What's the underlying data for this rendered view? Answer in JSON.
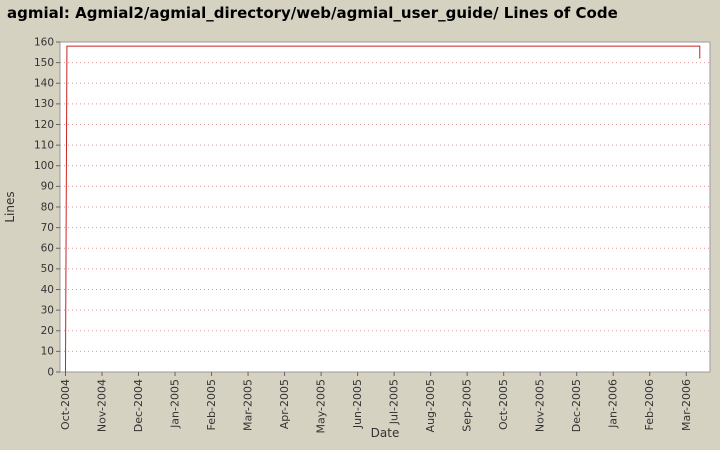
{
  "chart_data": {
    "type": "line",
    "title": "agmial: Agmial2/agmial_directory/web/agmial_user_guide/ Lines of Code",
    "xlabel": "Date",
    "ylabel": "Lines",
    "x_tick_labels": [
      "Oct-2004",
      "Nov-2004",
      "Dec-2004",
      "Jan-2005",
      "Feb-2005",
      "Mar-2005",
      "Apr-2005",
      "May-2005",
      "Jun-2005",
      "Jul-2005",
      "Aug-2005",
      "Sep-2005",
      "Oct-2005",
      "Nov-2005",
      "Dec-2005",
      "Jan-2006",
      "Feb-2006",
      "Mar-2006"
    ],
    "ylim": [
      0,
      160
    ],
    "ytick_step": 10,
    "xlim": [
      -0.15,
      17.65
    ],
    "grid": "horizontal-dotted",
    "legend": "none",
    "series": [
      {
        "name": "Lines of Code",
        "color": "#cc2222",
        "points": [
          [
            0,
            0
          ],
          [
            0.04,
            158
          ],
          [
            17.37,
            158
          ],
          [
            17.37,
            152
          ]
        ]
      }
    ],
    "colors": {
      "background": "#d6d2c2",
      "plot_bg": "#ffffff",
      "grid": "#dd9999",
      "border": "#999999",
      "tick": "#666666",
      "tick_text": "#333333",
      "axis_label_text": "#333333",
      "title_text": "#000000"
    }
  }
}
